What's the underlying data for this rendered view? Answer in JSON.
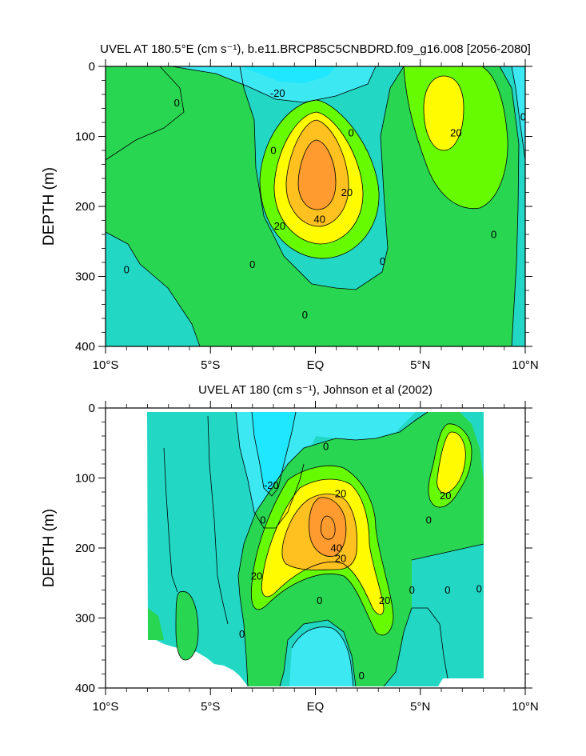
{
  "chart_data": [
    {
      "type": "heatmap",
      "title": "UVEL AT 180.5°E (cm s⁻¹), b.e11.BRCP85C5CNBDRD.f09_g16.008 [2056-2080]",
      "ylabel": "DEPTH (m)",
      "xlabel": "",
      "xlim": [
        -10,
        10
      ],
      "ylim": [
        400,
        0
      ],
      "x_ticks": [
        {
          "value": -10,
          "label": "10°S"
        },
        {
          "value": -5,
          "label": "5°S"
        },
        {
          "value": 0,
          "label": "EQ"
        },
        {
          "value": 5,
          "label": "5°N"
        },
        {
          "value": 10,
          "label": "10°N"
        }
      ],
      "y_ticks": [
        {
          "value": 0,
          "label": "0"
        },
        {
          "value": 100,
          "label": "100"
        },
        {
          "value": 200,
          "label": "200"
        },
        {
          "value": 300,
          "label": "300"
        },
        {
          "value": 400,
          "label": "400"
        }
      ],
      "contour_interval": 10,
      "color_levels": {
        "<-20": "#1ee7ff",
        "-20 to -10": "#3ce8f2",
        "-10 to 0": "#22d8c5",
        "0 to 10": "#28d651",
        "10 to 20": "#66fb00",
        "20 to 30": "#fffb00",
        "30 to 40": "#ffc11f",
        ">40": "#ff9b2f"
      },
      "features": [
        {
          "name": "equatorial undercurrent core",
          "lat": 0,
          "depth": 155,
          "value_min": 50
        },
        {
          "name": "north eastward jet",
          "lat": 6,
          "depth": 80,
          "value_min": 20
        },
        {
          "name": "surface westward flow",
          "lat": -2,
          "depth": 20,
          "value_max": -20
        }
      ],
      "contour_labels": [
        {
          "text": "0",
          "lat": -6.6,
          "depth": 52
        },
        {
          "text": "-20",
          "lat": -1.8,
          "depth": 38
        },
        {
          "text": "0",
          "lat": 1.7,
          "depth": 95
        },
        {
          "text": "20",
          "lat": 6.7,
          "depth": 95
        },
        {
          "text": "0",
          "lat": 9.9,
          "depth": 72
        },
        {
          "text": "0",
          "lat": -2.0,
          "depth": 120
        },
        {
          "text": "20",
          "lat": 1.5,
          "depth": 180
        },
        {
          "text": "40",
          "lat": 0.2,
          "depth": 218
        },
        {
          "text": "20",
          "lat": -1.7,
          "depth": 228
        },
        {
          "text": "0",
          "lat": 8.5,
          "depth": 240
        },
        {
          "text": "0",
          "lat": -3.0,
          "depth": 283
        },
        {
          "text": "0",
          "lat": 3.2,
          "depth": 278
        },
        {
          "text": "0",
          "lat": -9.0,
          "depth": 290
        },
        {
          "text": "0",
          "lat": -0.5,
          "depth": 355
        }
      ]
    },
    {
      "type": "heatmap",
      "title": "UVEL AT 180 (cm s⁻¹), Johnson et al (2002)",
      "ylabel": "DEPTH (m)",
      "xlabel": "",
      "xlim": [
        -10,
        10
      ],
      "ylim": [
        400,
        0
      ],
      "data_extent": {
        "lat": [
          -8,
          8
        ],
        "depth": [
          5,
          385
        ]
      },
      "x_ticks": [
        {
          "value": -10,
          "label": "10°S"
        },
        {
          "value": -5,
          "label": "5°S"
        },
        {
          "value": 0,
          "label": "EQ"
        },
        {
          "value": 5,
          "label": "5°N"
        },
        {
          "value": 10,
          "label": "10°N"
        }
      ],
      "y_ticks": [
        {
          "value": 0,
          "label": "0"
        },
        {
          "value": 100,
          "label": "100"
        },
        {
          "value": 200,
          "label": "200"
        },
        {
          "value": 300,
          "label": "300"
        },
        {
          "value": 400,
          "label": "400"
        }
      ],
      "features": [
        {
          "name": "equatorial undercurrent core",
          "lat": 0.4,
          "depth": 165,
          "value_min": 50
        },
        {
          "name": "north eastward jet",
          "lat": 6.3,
          "depth": 80,
          "value_min": 20
        },
        {
          "name": "surface westward flow",
          "lat": -1.5,
          "depth": 40,
          "value_max": -20
        }
      ],
      "contour_labels": [
        {
          "text": "0",
          "lat": 0.5,
          "depth": 55
        },
        {
          "text": "-20",
          "lat": -2.1,
          "depth": 110
        },
        {
          "text": "20",
          "lat": 1.2,
          "depth": 122
        },
        {
          "text": "0",
          "lat": -2.5,
          "depth": 160
        },
        {
          "text": "20",
          "lat": 6.2,
          "depth": 125
        },
        {
          "text": "0",
          "lat": 5.4,
          "depth": 160
        },
        {
          "text": "40",
          "lat": 1.0,
          "depth": 200
        },
        {
          "text": "20",
          "lat": 1.2,
          "depth": 215
        },
        {
          "text": "20",
          "lat": -2.8,
          "depth": 240
        },
        {
          "text": "20",
          "lat": 3.3,
          "depth": 275
        },
        {
          "text": "0",
          "lat": 0.2,
          "depth": 275
        },
        {
          "text": "0",
          "lat": 4.6,
          "depth": 260
        },
        {
          "text": "0",
          "lat": 6.3,
          "depth": 260
        },
        {
          "text": "0",
          "lat": 7.8,
          "depth": 258
        },
        {
          "text": "0",
          "lat": -3.5,
          "depth": 323
        },
        {
          "text": "0",
          "lat": 2.2,
          "depth": 382
        }
      ]
    }
  ]
}
